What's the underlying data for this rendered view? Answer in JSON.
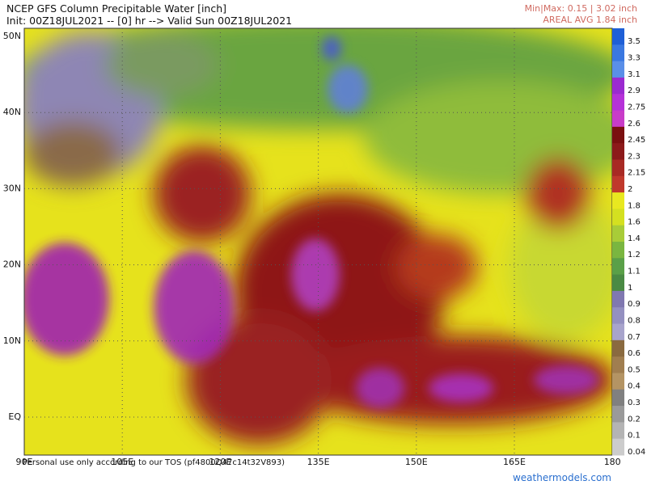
{
  "header": {
    "title": "NCEP GFS Column Precipitable Water [inch]",
    "subtitle": "Init: 00Z18JUL2021 -- [0] hr --> Valid Sun 00Z18JUL2021",
    "minmax": "Min|Max: 0.15 | 3.02 inch",
    "areal_avg": "AREAL AVG 1.84 inch"
  },
  "map": {
    "lat_labels": [
      "50N",
      "40N",
      "30N",
      "20N",
      "10N",
      "EQ"
    ],
    "lon_labels": [
      "90E",
      "105E",
      "120E",
      "135E",
      "150E",
      "165E",
      "180"
    ]
  },
  "colorbar": {
    "labels": [
      "3.5",
      "3.3",
      "3.1",
      "2.9",
      "2.75",
      "2.6",
      "2.45",
      "2.3",
      "2.15",
      "2",
      "1.8",
      "1.6",
      "1.4",
      "1.2",
      "1.1",
      "1",
      "0.9",
      "0.8",
      "0.7",
      "0.6",
      "0.5",
      "0.4",
      "0.3",
      "0.2",
      "0.1",
      "0.04"
    ]
  },
  "footer": {
    "disclaimer": "Personal use only according to our TOS (pf4800Q47c14t32V893)",
    "site": "weathermodels.com"
  }
}
